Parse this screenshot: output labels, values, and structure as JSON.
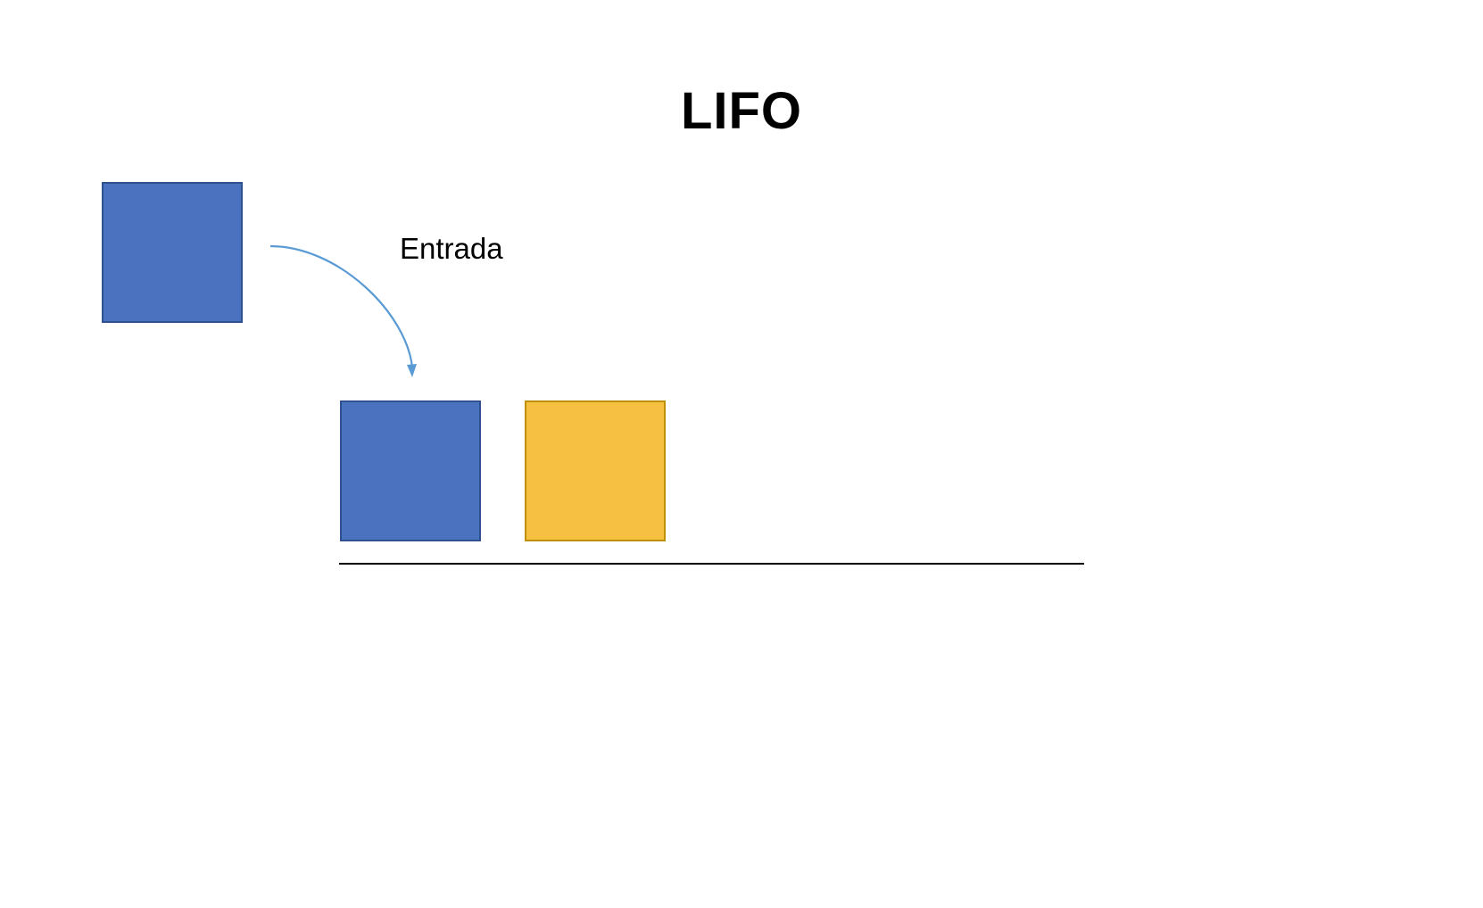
{
  "title": "LIFO",
  "entry_label": "Entrada",
  "colors": {
    "blue_fill": "#4A72BF",
    "blue_border": "#2F528F",
    "yellow_fill": "#F6C142",
    "yellow_border": "#BF9000",
    "arrow": "#5B9BD5",
    "baseline": "#000000"
  },
  "blocks": [
    {
      "id": "block-incoming",
      "color": "blue"
    },
    {
      "id": "block-stack-1",
      "color": "blue"
    },
    {
      "id": "block-stack-2",
      "color": "yellow"
    }
  ]
}
